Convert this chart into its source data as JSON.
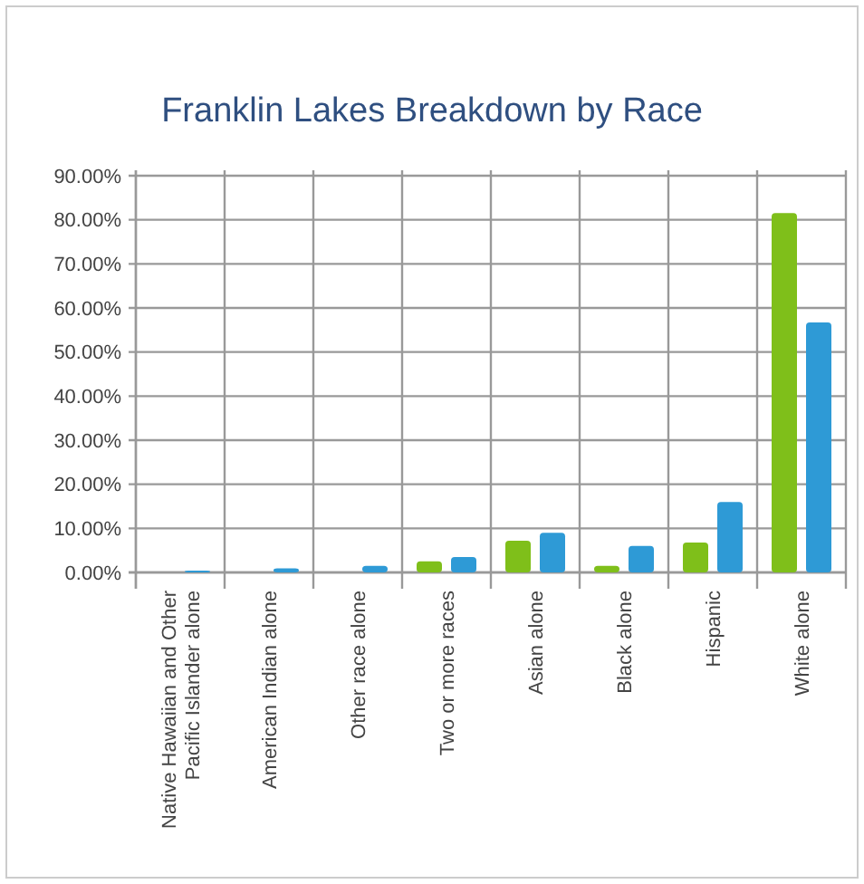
{
  "chart_data": {
    "type": "bar",
    "title": "Franklin Lakes Breakdown by Race",
    "categories": [
      "Native Hawaiian and Other Pacific Islander alone",
      "American Indian alone",
      "Other race alone",
      "Two or more races",
      "Asian alone",
      "Black alone",
      "Hispanic",
      "White alone"
    ],
    "series": [
      {
        "color": "#7fbf1a",
        "values": [
          0,
          0,
          0,
          2.5,
          7.2,
          1.5,
          6.8,
          81.5
        ]
      },
      {
        "color": "#2e9ad6",
        "values": [
          0.4,
          0.9,
          1.5,
          3.5,
          9.0,
          6.0,
          16.0,
          56.7
        ]
      }
    ],
    "ylim": [
      0,
      90
    ],
    "yticks": [
      {
        "value": 0,
        "label": "0.00%"
      },
      {
        "value": 10,
        "label": "10.00%"
      },
      {
        "value": 20,
        "label": "20.00%"
      },
      {
        "value": 30,
        "label": "30.00%"
      },
      {
        "value": 40,
        "label": "40.00%"
      },
      {
        "value": 50,
        "label": "50.00%"
      },
      {
        "value": 60,
        "label": "60.00%"
      },
      {
        "value": 70,
        "label": "70.00%"
      },
      {
        "value": 80,
        "label": "80.00%"
      },
      {
        "value": 90,
        "label": "90.00%"
      }
    ],
    "grid": true
  }
}
